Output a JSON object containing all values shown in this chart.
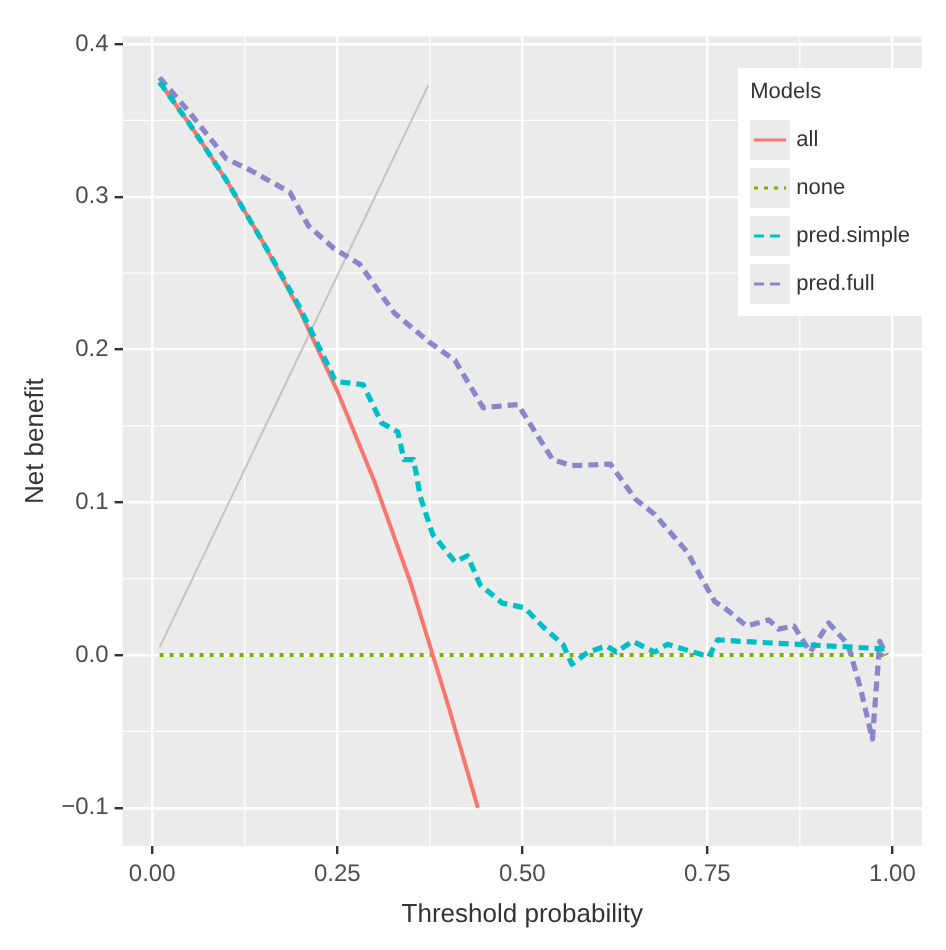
{
  "chart_data": {
    "type": "line",
    "xlabel": "Threshold probability",
    "ylabel": "Net benefit",
    "legend_title": "Models",
    "legend": "top right",
    "grid": true,
    "xlim": [
      -0.04,
      1.04
    ],
    "ylim": [
      -0.125,
      0.405
    ],
    "xticks": [
      {
        "value": 0,
        "label": "0.00"
      },
      0.25,
      {
        "value": 0.5,
        "label": "0.50"
      },
      0.75,
      {
        "value": 1,
        "label": "1.00"
      }
    ],
    "yticks": [
      -0.1,
      {
        "value": 0,
        "label": "0.0"
      },
      0.1,
      0.2,
      0.3,
      0.4
    ],
    "series": [
      {
        "name": "all",
        "color": "#f8766d",
        "line_style": "solid",
        "x": [
          0.01,
          0.05,
          0.1,
          0.15,
          0.2,
          0.25,
          0.3,
          0.35,
          0.4,
          0.44
        ],
        "values": [
          0.375,
          0.348,
          0.311,
          0.27,
          0.225,
          0.173,
          0.114,
          0.046,
          -0.033,
          -0.1
        ]
      },
      {
        "name": "none",
        "color": "#7cae00",
        "line_style": "dotted",
        "x": [
          0.01,
          0.99
        ],
        "values": [
          0,
          0
        ]
      },
      {
        "name": "pred.simple",
        "color": "#00bfc4",
        "line_style": "dashed",
        "x": [
          0.01,
          0.05,
          0.1,
          0.15,
          0.2,
          0.246,
          0.25,
          0.285,
          0.31,
          0.332,
          0.34,
          0.353,
          0.357,
          0.362,
          0.379,
          0.409,
          0.426,
          0.443,
          0.473,
          0.503,
          0.529,
          0.555,
          0.567,
          0.589,
          0.614,
          0.627,
          0.649,
          0.679,
          0.696,
          0.752,
          0.764,
          0.794,
          0.992
        ],
        "values": [
          0.375,
          0.348,
          0.311,
          0.27,
          0.227,
          0.181,
          0.179,
          0.177,
          0.152,
          0.146,
          0.128,
          0.128,
          0.118,
          0.104,
          0.079,
          0.061,
          0.065,
          0.046,
          0.034,
          0.031,
          0.018,
          0.007,
          -0.006,
          0.002,
          0.006,
          0.002,
          0.009,
          0.002,
          0.007,
          -0.001,
          0.01,
          0.009,
          0.004
        ]
      },
      {
        "name": "pred.full",
        "color": "#8b86c9",
        "line_style": "dashed",
        "x": [
          0.01,
          0.049,
          0.1,
          0.134,
          0.186,
          0.211,
          0.246,
          0.28,
          0.327,
          0.374,
          0.409,
          0.447,
          0.494,
          0.541,
          0.567,
          0.619,
          0.653,
          0.679,
          0.722,
          0.76,
          0.773,
          0.803,
          0.833,
          0.846,
          0.867,
          0.889,
          0.914,
          0.94,
          0.957,
          0.973,
          0.983,
          0.992
        ],
        "values": [
          0.378,
          0.356,
          0.325,
          0.317,
          0.303,
          0.281,
          0.266,
          0.256,
          0.224,
          0.205,
          0.193,
          0.162,
          0.164,
          0.128,
          0.124,
          0.125,
          0.102,
          0.092,
          0.068,
          0.035,
          0.031,
          0.019,
          0.023,
          0.017,
          0.019,
          0.002,
          0.021,
          0.007,
          -0.022,
          -0.055,
          0.009,
          0
        ]
      },
      {
        "color": "#c4c4c4",
        "line_style": "solid",
        "x": [
          0.01,
          0.373
        ],
        "values": [
          0.005,
          0.373
        ]
      }
    ]
  }
}
